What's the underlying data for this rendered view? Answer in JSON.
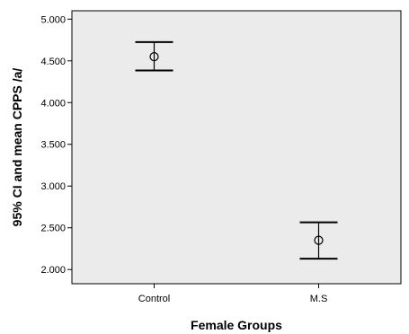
{
  "chart_data": {
    "type": "errorbar",
    "xlabel": "Female Groups",
    "ylabel": "95% CI and mean CPPS /a/",
    "categories": [
      "Control",
      "M.S"
    ],
    "series": [
      {
        "mean": [
          4.55,
          2.35
        ],
        "ci_lower": [
          4.385,
          2.13
        ],
        "ci_upper": [
          4.725,
          2.565
        ]
      }
    ],
    "ylim": [
      1.83,
      5.1
    ],
    "y_ticks": [
      "2.000",
      "2.500",
      "3.000",
      "3.500",
      "4.000",
      "4.500",
      "5.000"
    ],
    "y_tick_values": [
      2.0,
      2.5,
      3.0,
      3.5,
      4.0,
      4.5,
      5.0
    ],
    "grid": false,
    "plot_background": "#ebebeb",
    "marker": "open-circle"
  }
}
